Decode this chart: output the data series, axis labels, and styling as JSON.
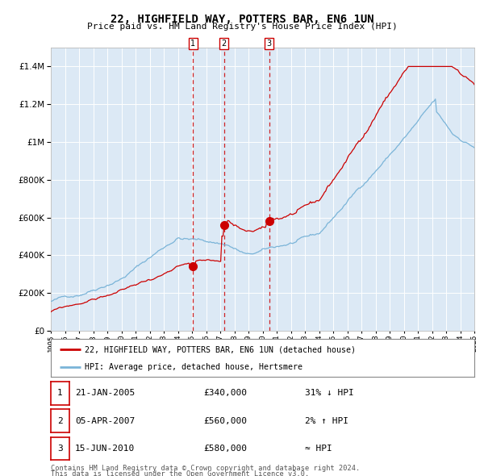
{
  "title": "22, HIGHFIELD WAY, POTTERS BAR, EN6 1UN",
  "subtitle": "Price paid vs. HM Land Registry's House Price Index (HPI)",
  "legend_line1": "22, HIGHFIELD WAY, POTTERS BAR, EN6 1UN (detached house)",
  "legend_line2": "HPI: Average price, detached house, Hertsmere",
  "footer1": "Contains HM Land Registry data © Crown copyright and database right 2024.",
  "footer2": "This data is licensed under the Open Government Licence v3.0.",
  "sale_labels": [
    "1",
    "2",
    "3"
  ],
  "sale_dates_label": [
    "21-JAN-2005",
    "05-APR-2007",
    "15-JUN-2010"
  ],
  "sale_prices_label": [
    "£340,000",
    "£560,000",
    "£580,000"
  ],
  "sale_hpi_label": [
    "31% ↓ HPI",
    "2% ↑ HPI",
    "≈ HPI"
  ],
  "hpi_line_color": "#7ab4d8",
  "price_line_color": "#cc0000",
  "sale_marker_color": "#cc0000",
  "vline_color": "#cc0000",
  "plot_bg_color": "#dce9f5",
  "grid_color": "#ffffff",
  "ylim": [
    0,
    1500000
  ],
  "yticks": [
    0,
    200000,
    400000,
    600000,
    800000,
    1000000,
    1200000,
    1400000
  ],
  "year_start": 1995,
  "year_end": 2025,
  "sale_years": [
    2005.06,
    2007.27,
    2010.46
  ],
  "sale_prices": [
    340000,
    560000,
    580000
  ]
}
